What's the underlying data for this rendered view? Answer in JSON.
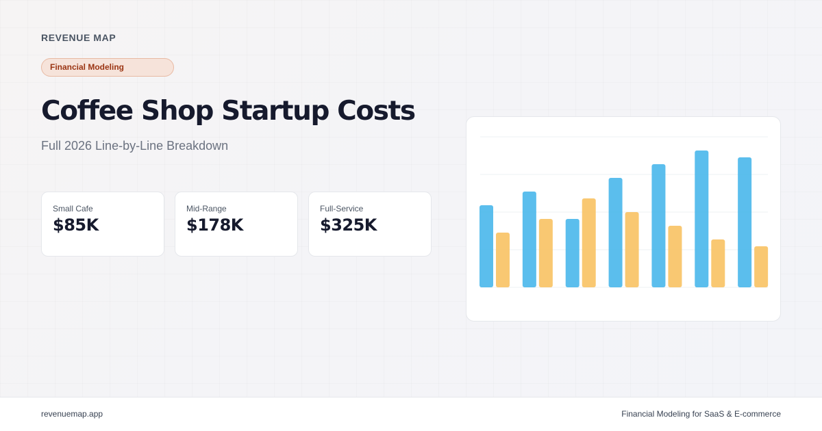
{
  "brand": "REVENUE MAP",
  "tag": "Financial Modeling",
  "title": "Coffee Shop Startup Costs",
  "subtitle": "Full 2026 Line-by-Line Breakdown",
  "cards": [
    {
      "label": "Small Cafe",
      "value": "$85K"
    },
    {
      "label": "Mid-Range",
      "value": "$178K"
    },
    {
      "label": "Full-Service",
      "value": "$325K"
    }
  ],
  "footer": {
    "left": "revenuemap.app",
    "right": "Financial Modeling for SaaS & E-commerce"
  },
  "colors": {
    "series_a": "#4db8ec",
    "series_b": "#f8c366",
    "tag_text": "#9a3412"
  },
  "chart_data": {
    "type": "bar",
    "categories": [
      "",
      "",
      "",
      "",
      "",
      "",
      ""
    ],
    "series": [
      {
        "values": [
          60,
          70,
          50,
          80,
          90,
          100,
          95
        ]
      },
      {
        "values": [
          40,
          50,
          65,
          55,
          45,
          35,
          30
        ]
      }
    ],
    "ylim": [
      0,
      110
    ],
    "grid": true,
    "title": "",
    "xlabel": "",
    "ylabel": ""
  }
}
